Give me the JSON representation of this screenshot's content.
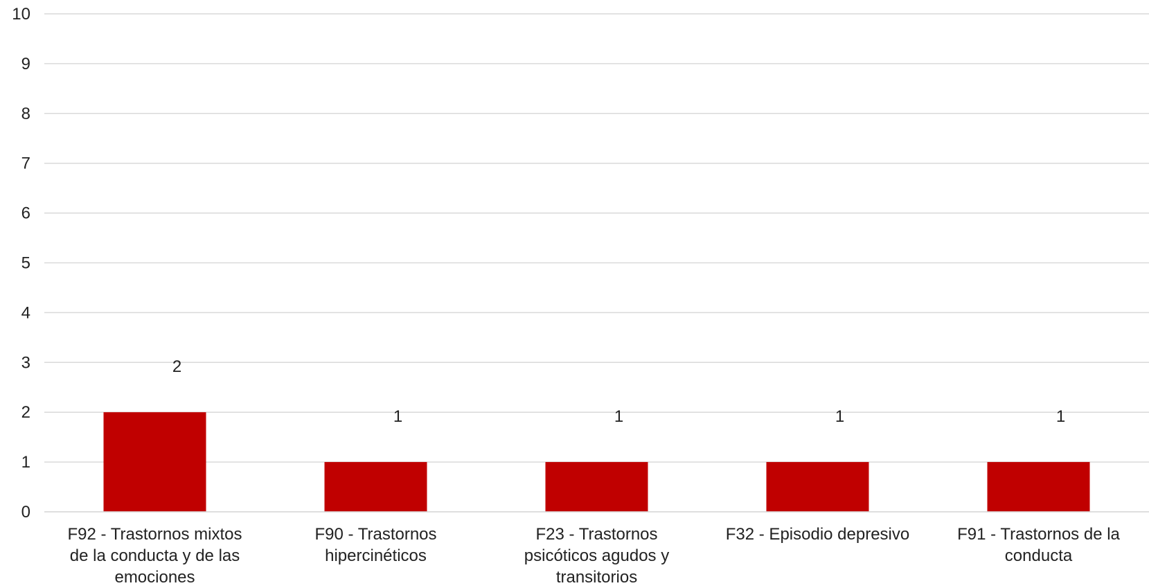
{
  "chart_data": {
    "type": "bar",
    "title": "",
    "xlabel": "",
    "ylabel": "",
    "categories": [
      "F92  - Trastornos mixtos\nde la conducta y de las\nemociones",
      "F90  - Trastornos\nhipercinéticos",
      "F23  - Trastornos\npsicóticos agudos y\ntransitorios",
      "F32  - Episodio depresivo",
      "F91  - Trastornos de la\nconducta"
    ],
    "values": [
      2,
      1,
      1,
      1,
      1
    ],
    "data_labels": [
      "2",
      "1",
      "1",
      "1",
      "1"
    ],
    "ylim": [
      0,
      10
    ],
    "yticks": [
      0,
      1,
      2,
      3,
      4,
      5,
      6,
      7,
      8,
      9,
      10
    ],
    "grid": true,
    "legend": "none",
    "colors": {
      "bar": "#c00000",
      "grid": "#d9d9d9",
      "text": "#222222"
    }
  }
}
